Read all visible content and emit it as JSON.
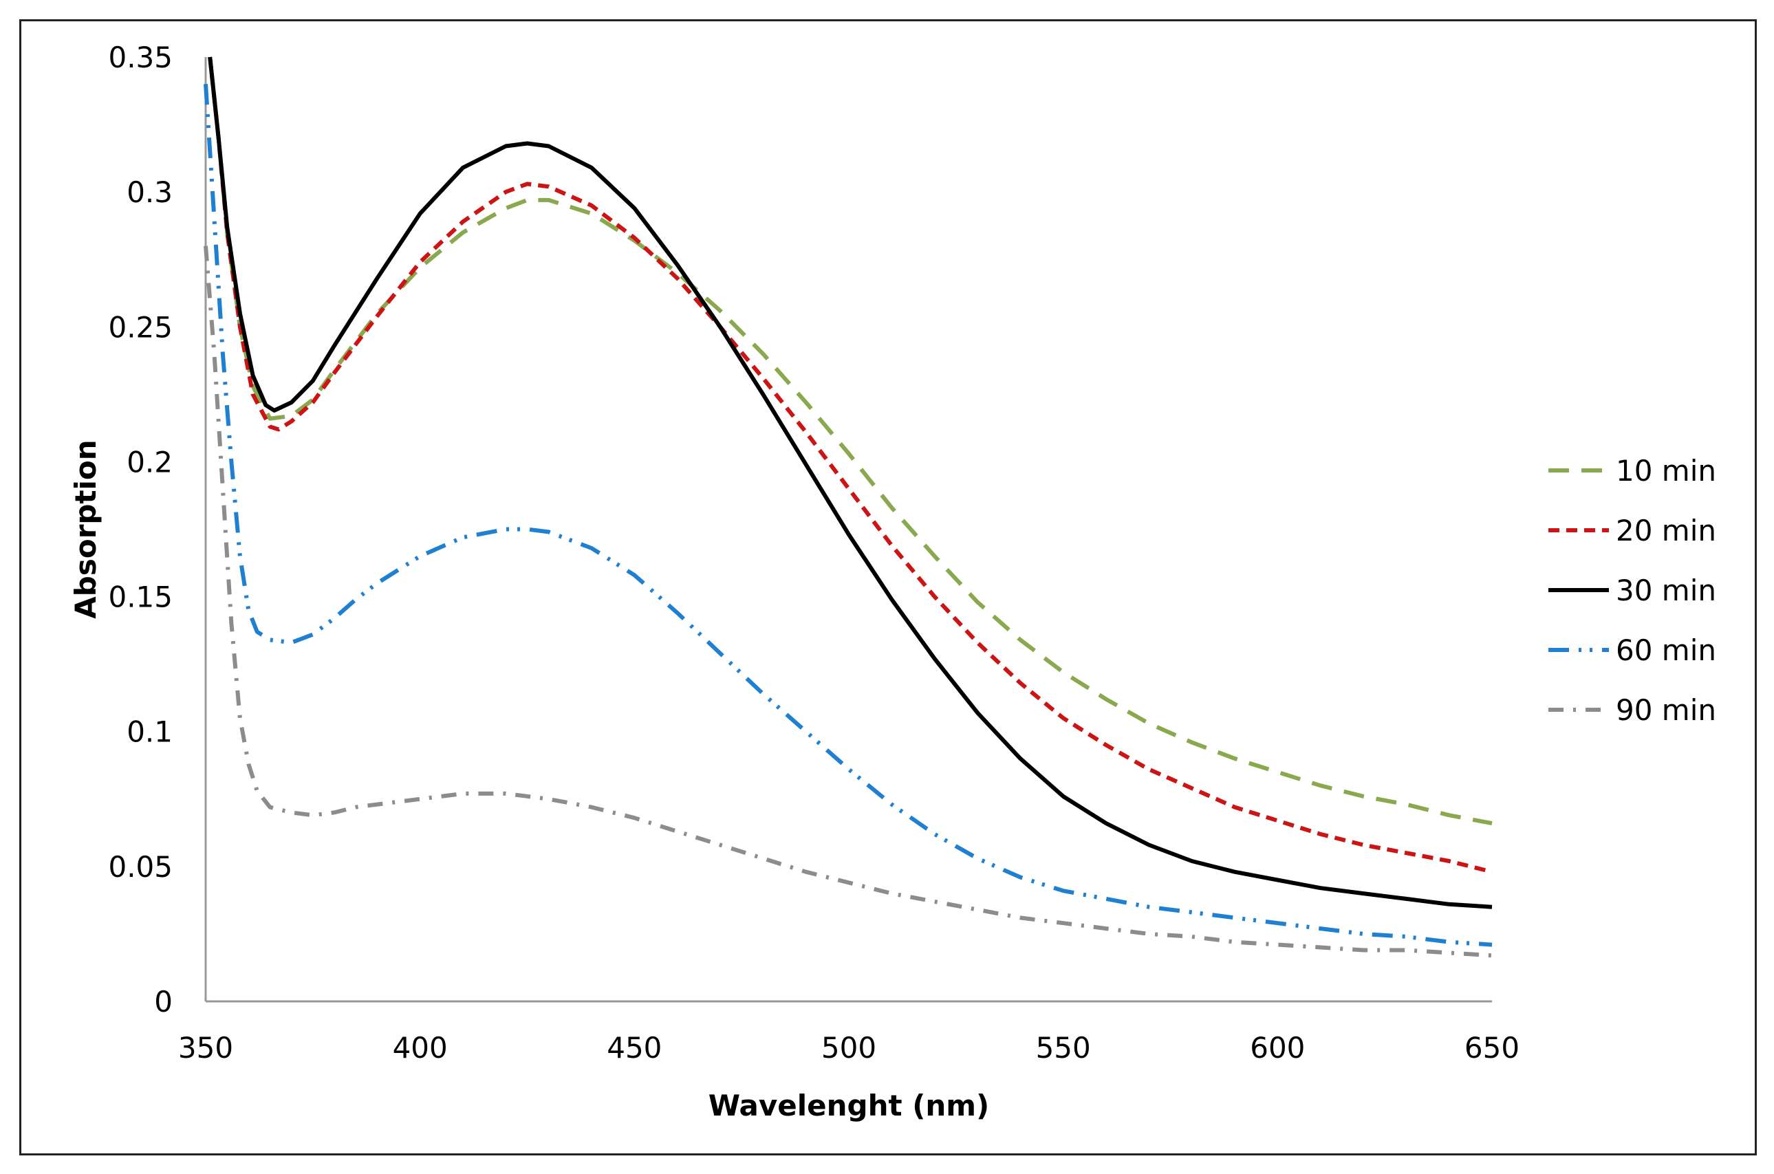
{
  "chart_data": {
    "type": "line",
    "title": "",
    "xlabel": "Wavelenght (nm)",
    "ylabel": "Absorption",
    "xlim": [
      350,
      650
    ],
    "ylim": [
      0,
      0.35
    ],
    "xticks": [
      "350",
      "400",
      "450",
      "500",
      "550",
      "600",
      "650"
    ],
    "yticks": [
      "0",
      "0.05",
      "0.1",
      "0.15",
      "0.2",
      "0.25",
      "0.3",
      "0.35"
    ],
    "grid": false,
    "legend_position": "right",
    "series": [
      {
        "name": "10 min",
        "color": "#8aa84e",
        "style": "dash",
        "points": [
          [
            351,
            0.35
          ],
          [
            353,
            0.32
          ],
          [
            355,
            0.285
          ],
          [
            358,
            0.25
          ],
          [
            361,
            0.228
          ],
          [
            365,
            0.216
          ],
          [
            370,
            0.217
          ],
          [
            375,
            0.223
          ],
          [
            380,
            0.234
          ],
          [
            390,
            0.255
          ],
          [
            400,
            0.272
          ],
          [
            410,
            0.285
          ],
          [
            420,
            0.294
          ],
          [
            425,
            0.297
          ],
          [
            430,
            0.297
          ],
          [
            440,
            0.292
          ],
          [
            450,
            0.282
          ],
          [
            460,
            0.27
          ],
          [
            470,
            0.256
          ],
          [
            480,
            0.24
          ],
          [
            490,
            0.222
          ],
          [
            500,
            0.203
          ],
          [
            510,
            0.183
          ],
          [
            520,
            0.165
          ],
          [
            530,
            0.148
          ],
          [
            540,
            0.134
          ],
          [
            550,
            0.122
          ],
          [
            560,
            0.112
          ],
          [
            570,
            0.103
          ],
          [
            580,
            0.096
          ],
          [
            590,
            0.09
          ],
          [
            600,
            0.085
          ],
          [
            610,
            0.08
          ],
          [
            620,
            0.076
          ],
          [
            630,
            0.073
          ],
          [
            640,
            0.069
          ],
          [
            650,
            0.066
          ]
        ]
      },
      {
        "name": "20 min",
        "color": "#cc1414",
        "style": "short-dash",
        "points": [
          [
            351,
            0.35
          ],
          [
            353,
            0.32
          ],
          [
            355,
            0.285
          ],
          [
            358,
            0.25
          ],
          [
            361,
            0.225
          ],
          [
            365,
            0.213
          ],
          [
            367,
            0.212
          ],
          [
            370,
            0.215
          ],
          [
            375,
            0.222
          ],
          [
            380,
            0.233
          ],
          [
            390,
            0.254
          ],
          [
            400,
            0.274
          ],
          [
            410,
            0.289
          ],
          [
            420,
            0.3
          ],
          [
            425,
            0.303
          ],
          [
            430,
            0.302
          ],
          [
            440,
            0.295
          ],
          [
            450,
            0.283
          ],
          [
            460,
            0.268
          ],
          [
            470,
            0.25
          ],
          [
            480,
            0.231
          ],
          [
            490,
            0.211
          ],
          [
            500,
            0.19
          ],
          [
            510,
            0.169
          ],
          [
            520,
            0.15
          ],
          [
            530,
            0.133
          ],
          [
            540,
            0.118
          ],
          [
            550,
            0.105
          ],
          [
            560,
            0.095
          ],
          [
            570,
            0.086
          ],
          [
            580,
            0.079
          ],
          [
            590,
            0.072
          ],
          [
            600,
            0.067
          ],
          [
            610,
            0.062
          ],
          [
            620,
            0.058
          ],
          [
            630,
            0.055
          ],
          [
            640,
            0.052
          ],
          [
            650,
            0.048
          ]
        ]
      },
      {
        "name": "30 min",
        "color": "#000000",
        "style": "solid",
        "points": [
          [
            351,
            0.35
          ],
          [
            353,
            0.32
          ],
          [
            355,
            0.287
          ],
          [
            358,
            0.255
          ],
          [
            361,
            0.232
          ],
          [
            364,
            0.221
          ],
          [
            366,
            0.219
          ],
          [
            370,
            0.222
          ],
          [
            375,
            0.23
          ],
          [
            380,
            0.243
          ],
          [
            390,
            0.268
          ],
          [
            400,
            0.292
          ],
          [
            410,
            0.309
          ],
          [
            420,
            0.317
          ],
          [
            425,
            0.318
          ],
          [
            430,
            0.317
          ],
          [
            440,
            0.309
          ],
          [
            450,
            0.294
          ],
          [
            460,
            0.273
          ],
          [
            470,
            0.25
          ],
          [
            480,
            0.225
          ],
          [
            490,
            0.199
          ],
          [
            500,
            0.173
          ],
          [
            510,
            0.149
          ],
          [
            520,
            0.127
          ],
          [
            530,
            0.107
          ],
          [
            540,
            0.09
          ],
          [
            550,
            0.076
          ],
          [
            560,
            0.066
          ],
          [
            570,
            0.058
          ],
          [
            580,
            0.052
          ],
          [
            590,
            0.048
          ],
          [
            600,
            0.045
          ],
          [
            610,
            0.042
          ],
          [
            620,
            0.04
          ],
          [
            630,
            0.038
          ],
          [
            640,
            0.036
          ],
          [
            650,
            0.035
          ]
        ]
      },
      {
        "name": "60 min",
        "color": "#1f7fd0",
        "style": "dash-dot-dot",
        "points": [
          [
            350,
            0.34
          ],
          [
            352,
            0.29
          ],
          [
            354,
            0.24
          ],
          [
            356,
            0.2
          ],
          [
            358,
            0.165
          ],
          [
            360,
            0.145
          ],
          [
            362,
            0.137
          ],
          [
            365,
            0.134
          ],
          [
            370,
            0.133
          ],
          [
            375,
            0.136
          ],
          [
            380,
            0.142
          ],
          [
            385,
            0.149
          ],
          [
            390,
            0.155
          ],
          [
            400,
            0.165
          ],
          [
            410,
            0.172
          ],
          [
            420,
            0.175
          ],
          [
            425,
            0.175
          ],
          [
            430,
            0.174
          ],
          [
            440,
            0.168
          ],
          [
            450,
            0.158
          ],
          [
            460,
            0.144
          ],
          [
            470,
            0.129
          ],
          [
            480,
            0.114
          ],
          [
            490,
            0.1
          ],
          [
            500,
            0.086
          ],
          [
            510,
            0.073
          ],
          [
            520,
            0.062
          ],
          [
            530,
            0.053
          ],
          [
            540,
            0.046
          ],
          [
            550,
            0.041
          ],
          [
            560,
            0.038
          ],
          [
            570,
            0.035
          ],
          [
            580,
            0.033
          ],
          [
            590,
            0.031
          ],
          [
            600,
            0.029
          ],
          [
            610,
            0.027
          ],
          [
            620,
            0.025
          ],
          [
            630,
            0.024
          ],
          [
            640,
            0.022
          ],
          [
            650,
            0.021
          ]
        ]
      },
      {
        "name": "90 min",
        "color": "#8c8c8c",
        "style": "dash-dot",
        "points": [
          [
            350,
            0.28
          ],
          [
            352,
            0.24
          ],
          [
            354,
            0.19
          ],
          [
            356,
            0.14
          ],
          [
            358,
            0.105
          ],
          [
            360,
            0.088
          ],
          [
            362,
            0.078
          ],
          [
            365,
            0.072
          ],
          [
            370,
            0.07
          ],
          [
            375,
            0.069
          ],
          [
            380,
            0.07
          ],
          [
            385,
            0.072
          ],
          [
            390,
            0.073
          ],
          [
            400,
            0.075
          ],
          [
            410,
            0.077
          ],
          [
            415,
            0.077
          ],
          [
            420,
            0.077
          ],
          [
            430,
            0.075
          ],
          [
            440,
            0.072
          ],
          [
            450,
            0.068
          ],
          [
            460,
            0.063
          ],
          [
            470,
            0.058
          ],
          [
            480,
            0.053
          ],
          [
            490,
            0.048
          ],
          [
            500,
            0.044
          ],
          [
            510,
            0.04
          ],
          [
            520,
            0.037
          ],
          [
            530,
            0.034
          ],
          [
            540,
            0.031
          ],
          [
            550,
            0.029
          ],
          [
            560,
            0.027
          ],
          [
            570,
            0.025
          ],
          [
            580,
            0.024
          ],
          [
            590,
            0.022
          ],
          [
            600,
            0.021
          ],
          [
            610,
            0.02
          ],
          [
            620,
            0.019
          ],
          [
            630,
            0.019
          ],
          [
            640,
            0.018
          ],
          [
            650,
            0.017
          ]
        ]
      }
    ]
  }
}
